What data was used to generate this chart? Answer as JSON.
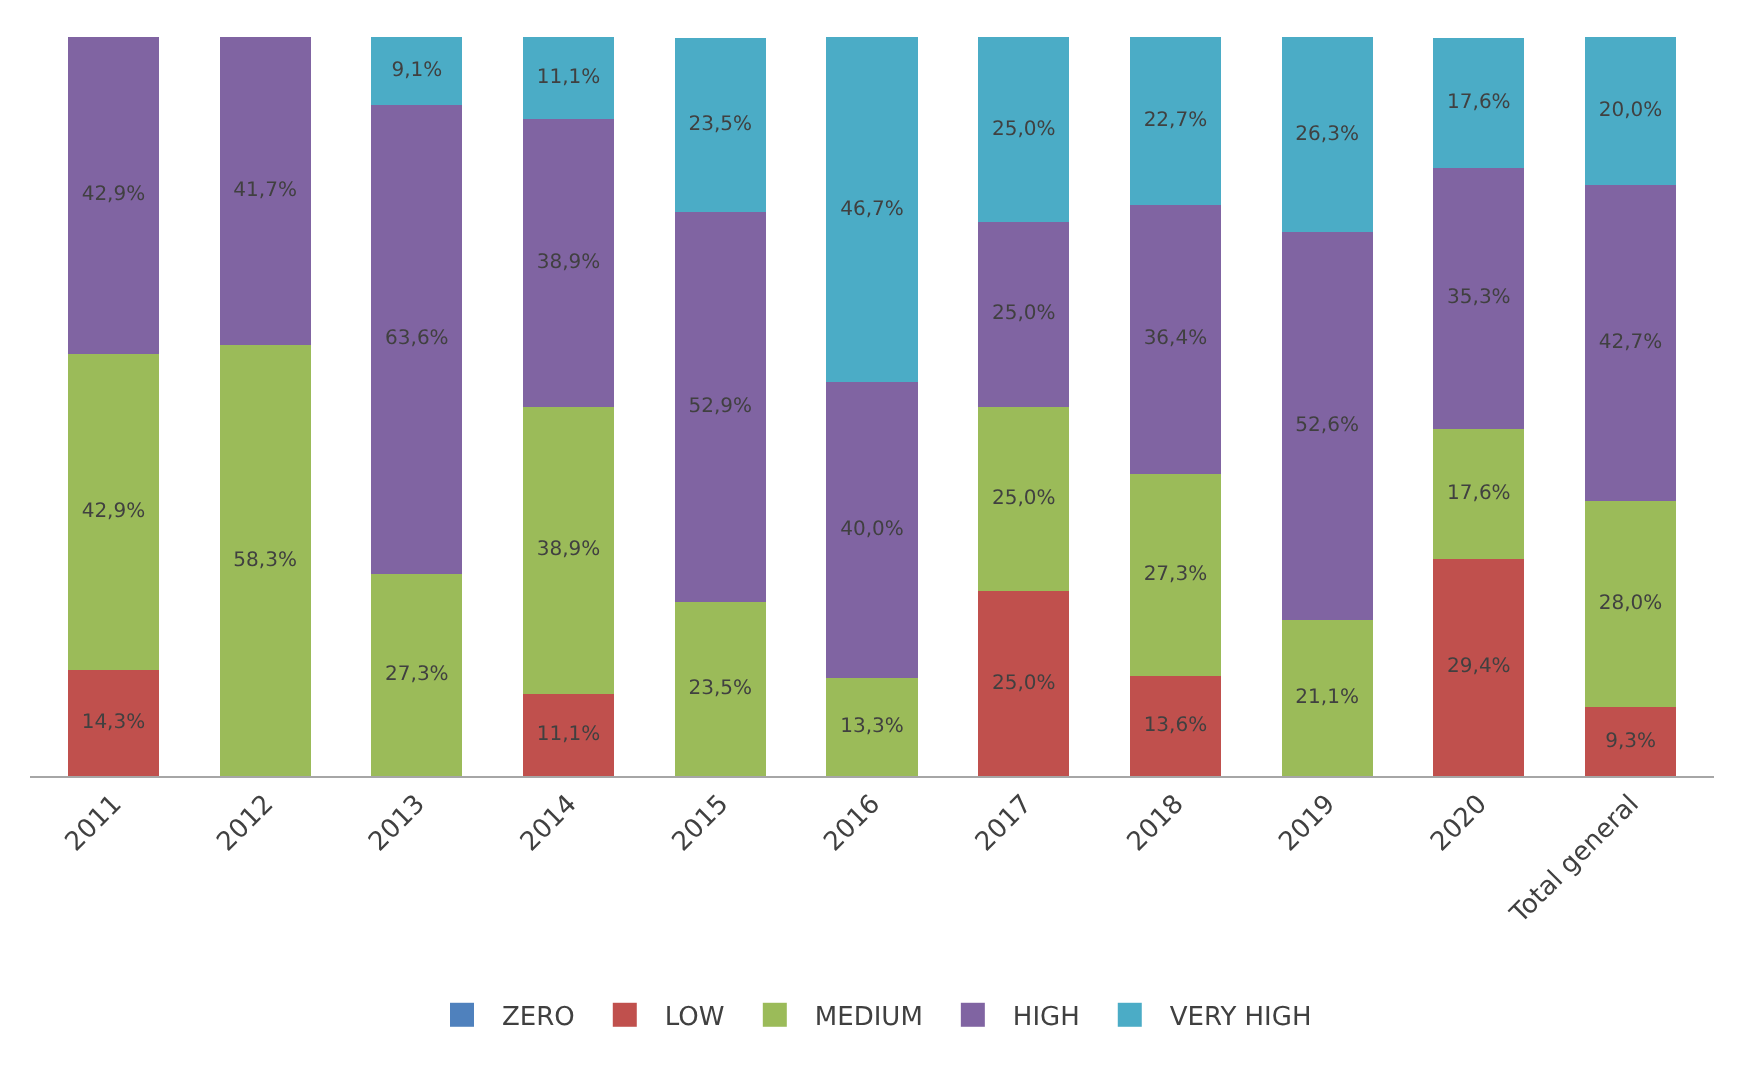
{
  "chart_data": {
    "type": "bar",
    "stacked": true,
    "categories": [
      "2011",
      "2012",
      "2013",
      "2014",
      "2015",
      "2016",
      "2017",
      "2018",
      "2019",
      "2020",
      "Total general"
    ],
    "series": [
      {
        "name": "ZERO",
        "color": "#4f81bd",
        "values": [
          null,
          null,
          null,
          null,
          null,
          null,
          null,
          null,
          null,
          null,
          null
        ]
      },
      {
        "name": "LOW",
        "color": "#c0504d",
        "values": [
          14.3,
          null,
          null,
          11.1,
          null,
          null,
          25.0,
          13.6,
          null,
          29.4,
          9.3
        ],
        "value_labels": [
          "14,3%",
          null,
          null,
          "11,1%",
          null,
          null,
          "25,0%",
          "13,6%",
          null,
          "29,4%",
          "9,3%"
        ]
      },
      {
        "name": "MEDIUM",
        "color": "#9bbb59",
        "values": [
          42.9,
          58.3,
          27.3,
          38.9,
          23.5,
          13.3,
          25.0,
          27.3,
          21.1,
          17.6,
          28.0
        ],
        "value_labels": [
          "42,9%",
          "58,3%",
          "27,3%",
          "38,9%",
          "23,5%",
          "13,3%",
          "25,0%",
          "27,3%",
          "21,1%",
          "17,6%",
          "28,0%"
        ]
      },
      {
        "name": "HIGH",
        "color": "#8064a2",
        "values": [
          42.9,
          41.7,
          63.6,
          38.9,
          52.9,
          40.0,
          25.0,
          36.4,
          52.6,
          35.3,
          42.7
        ],
        "value_labels": [
          "42,9%",
          "41,7%",
          "63,6%",
          "38,9%",
          "52,9%",
          "40,0%",
          "25,0%",
          "36,4%",
          "52,6%",
          "35,3%",
          "42,7%"
        ]
      },
      {
        "name": "VERY HIGH",
        "color": "#4bacc6",
        "values": [
          null,
          null,
          9.1,
          11.1,
          23.5,
          46.7,
          25.0,
          22.7,
          26.3,
          17.6,
          20.0
        ],
        "value_labels": [
          null,
          null,
          "9,1%",
          "11,1%",
          "23,5%",
          "46,7%",
          "25,0%",
          "22,7%",
          "26,3%",
          "17,6%",
          "20,0%"
        ]
      }
    ],
    "ylim": [
      0,
      101
    ],
    "tick_labels": "x",
    "legend": "bottom"
  }
}
